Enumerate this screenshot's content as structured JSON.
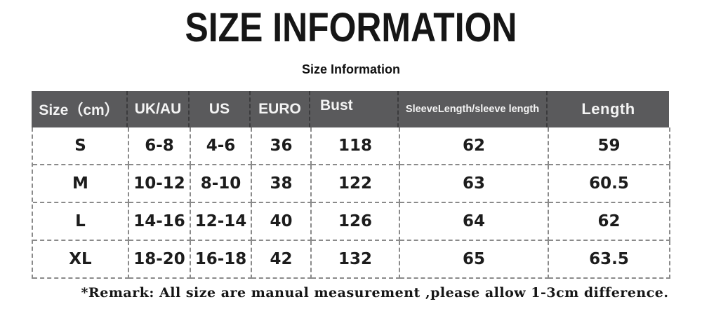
{
  "page": {
    "title": "SIZE INFORMATION",
    "subtitle": "Size Information",
    "remark": "*Remark: All size are manual measurement ,please allow 1-3cm difference."
  },
  "colors": {
    "header_bg": "#5a5a5c",
    "header_text": "#f4f4f4",
    "header_divider": "#3b3b3d",
    "body_text": "#1c1c1c",
    "dashed_grid_line": "#8a8a8a",
    "background": "#ffffff"
  },
  "chart_data": {
    "type": "table",
    "title": "Size Information",
    "unit": "cm",
    "columns": [
      "Size（cm）",
      "UK/AU",
      "US",
      "EURO",
      "Bust",
      "SleeveLength/sleeve length",
      "Length"
    ],
    "rows": [
      [
        "S",
        "6-8",
        "4-6",
        "36",
        "118",
        "62",
        "59"
      ],
      [
        "M",
        "10-12",
        "8-10",
        "38",
        "122",
        "63",
        "60.5"
      ],
      [
        "L",
        "14-16",
        "12-14",
        "40",
        "126",
        "64",
        "62"
      ],
      [
        "XL",
        "18-20",
        "16-18",
        "42",
        "132",
        "65",
        "63.5"
      ]
    ]
  }
}
